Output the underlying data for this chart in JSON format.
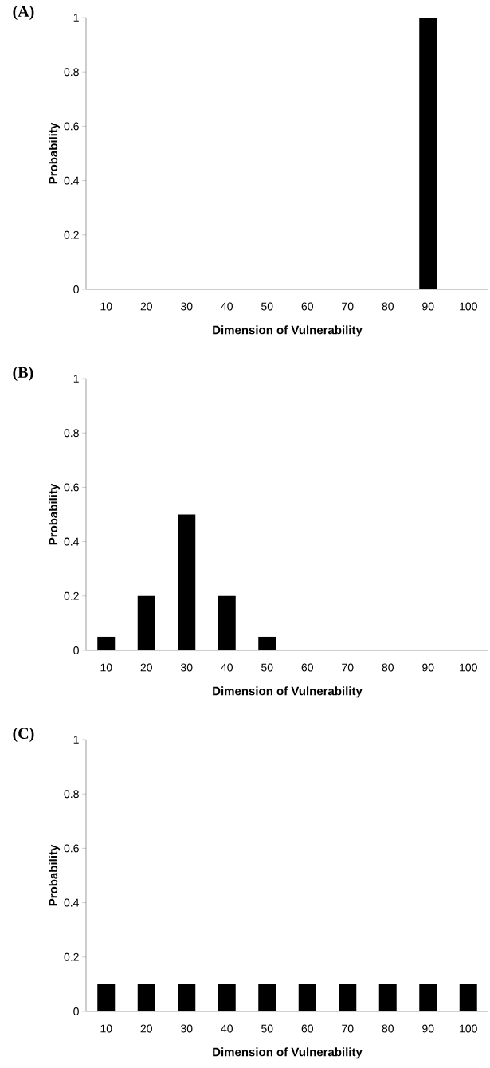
{
  "chart_data": [
    {
      "type": "bar",
      "title": "(A)",
      "xlabel": "Dimension of Vulnerability",
      "ylabel": "Probability",
      "categories": [
        "10",
        "20",
        "30",
        "40",
        "50",
        "60",
        "70",
        "80",
        "90",
        "100"
      ],
      "values": [
        0,
        0,
        0,
        0,
        0,
        0,
        0,
        0,
        1,
        0
      ],
      "color": "#000000",
      "ylim": [
        0,
        1
      ],
      "yticks": [
        0,
        0.2,
        0.4,
        0.6,
        0.8,
        1
      ]
    },
    {
      "type": "bar",
      "title": "(B)",
      "xlabel": "Dimension of Vulnerability",
      "ylabel": "Probability",
      "categories": [
        "10",
        "20",
        "30",
        "40",
        "50",
        "60",
        "70",
        "80",
        "90",
        "100"
      ],
      "values": [
        0.05,
        0.2,
        0.5,
        0.2,
        0.05,
        0,
        0,
        0,
        0,
        0
      ],
      "color": "#000000",
      "ylim": [
        0,
        1
      ],
      "yticks": [
        0,
        0.2,
        0.4,
        0.6,
        0.8,
        1
      ]
    },
    {
      "type": "bar",
      "title": "(C)",
      "xlabel": "Dimension of Vulnerability",
      "ylabel": "Probability",
      "categories": [
        "10",
        "20",
        "30",
        "40",
        "50",
        "60",
        "70",
        "80",
        "90",
        "100"
      ],
      "values": [
        0.1,
        0.1,
        0.1,
        0.1,
        0.1,
        0.1,
        0.1,
        0.1,
        0.1,
        0.1
      ],
      "color": "#000000",
      "ylim": [
        0,
        1
      ],
      "yticks": [
        0,
        0.2,
        0.4,
        0.6,
        0.8,
        1
      ]
    }
  ]
}
